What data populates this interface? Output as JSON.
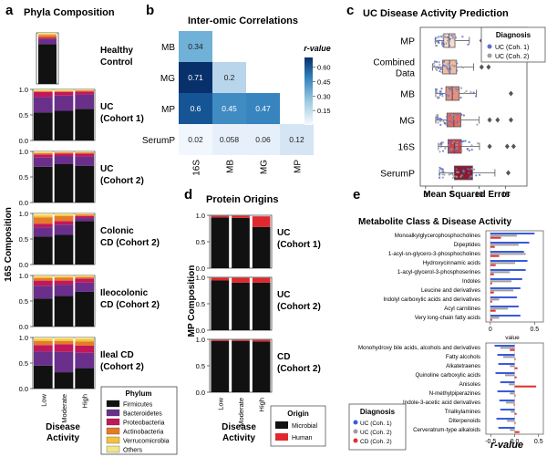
{
  "colors": {
    "firmicutes": "#111111",
    "bacteroidetes": "#6a2f8a",
    "proteobacteria": "#c2185b",
    "actinobacteria": "#e57a2a",
    "verrucomicrobia": "#f3c23d",
    "others": "#f0e68c",
    "microbial": "#111111",
    "human": "#e0282e",
    "coh1": "#3b5bdb",
    "coh2": "#9e9e9e",
    "cd": "#e03131"
  },
  "panels": {
    "a": {
      "letter": "a",
      "title": "Phyla Composition",
      "ylabel": "16S Composition",
      "xlabel_line1": "Disease",
      "xlabel_line2": "Activity",
      "xticks": [
        "Low",
        "Moderate",
        "High"
      ],
      "yticks": [
        "0.0",
        "0.5",
        "1.0"
      ],
      "legend_title": "Phylum",
      "legend": [
        "Firmicutes",
        "Bacteroidetes",
        "Proteobacteria",
        "Actinobacteria",
        "Verrucomicrobia",
        "Others"
      ]
    },
    "b": {
      "letter": "b",
      "title": "Inter-omic Correlations",
      "cbar_title": "r-value",
      "cbar_ticks": [
        "0.60",
        "0.45",
        "0.30",
        "0.15"
      ],
      "rows": [
        "MB",
        "MG",
        "MP",
        "SerumP"
      ],
      "cols": [
        "16S",
        "MB",
        "MG",
        "MP"
      ]
    },
    "c": {
      "letter": "c",
      "title": "UC Disease Activity Prediction",
      "xlabel": "Mean Squared Error",
      "xticks": [
        "0",
        "5",
        "10",
        "15"
      ],
      "legend_title": "Diagnosis",
      "legend": [
        "UC (Coh. 1)",
        "UC (Coh. 2)"
      ],
      "rows": [
        "MP",
        "Combined Data",
        "MB",
        "MG",
        "16S",
        "SerumP"
      ]
    },
    "d": {
      "letter": "d",
      "title": "Protein Origins",
      "ylabel": "MP Composition",
      "xlabel_line1": "Disease",
      "xlabel_line2": "Activity",
      "xticks": [
        "Low",
        "Moderate",
        "High"
      ],
      "yticks": [
        "0.0",
        "0.5",
        "1.0"
      ],
      "legend_title": "Origin",
      "legend": [
        "Microbial",
        "Human"
      ]
    },
    "e": {
      "letter": "e",
      "title": "Metabolite Class & Disease Activity",
      "xlabel": "r-value",
      "value_label": "value",
      "top_ticks": [
        "0",
        "0.5"
      ],
      "bottom_ticks": [
        "-0.5",
        "0.0",
        "0.5"
      ],
      "legend_title": "Diagnosis",
      "legend": [
        "UC (Coh. 1)",
        "UC (Coh. 2)",
        "CD (Coh. 2)"
      ]
    }
  },
  "chart_data": [
    {
      "panel": "a",
      "type": "bar",
      "title": "Phyla Composition",
      "categories": [
        "Low",
        "Moderate",
        "High"
      ],
      "stack_order": [
        "Firmicutes",
        "Bacteroidetes",
        "Proteobacteria",
        "Actinobacteria",
        "Verrucomicrobia",
        "Others"
      ],
      "ylim": [
        0,
        1
      ],
      "groups": [
        {
          "name_lines": [
            "Healthy",
            "Control"
          ],
          "bars": [
            [
              0.78,
              0.1,
              0.03,
              0.05,
              0.02,
              0.02
            ]
          ]
        },
        {
          "name_lines": [
            "UC",
            "(Cohort 1)"
          ],
          "bars": [
            [
              0.55,
              0.3,
              0.1,
              0.02,
              0.01,
              0.02
            ],
            [
              0.58,
              0.3,
              0.07,
              0.02,
              0.01,
              0.02
            ],
            [
              0.62,
              0.28,
              0.06,
              0.02,
              0.01,
              0.01
            ]
          ]
        },
        {
          "name_lines": [
            "UC",
            "(Cohort 2)"
          ],
          "bars": [
            [
              0.7,
              0.18,
              0.06,
              0.03,
              0.01,
              0.02
            ],
            [
              0.75,
              0.16,
              0.05,
              0.02,
              0.01,
              0.01
            ],
            [
              0.72,
              0.18,
              0.06,
              0.02,
              0.01,
              0.01
            ]
          ]
        },
        {
          "name_lines": [
            "Colonic",
            "CD (Cohort 2)"
          ],
          "bars": [
            [
              0.55,
              0.18,
              0.07,
              0.12,
              0.04,
              0.04
            ],
            [
              0.58,
              0.2,
              0.07,
              0.1,
              0.03,
              0.02
            ],
            [
              0.85,
              0.06,
              0.04,
              0.03,
              0.01,
              0.01
            ]
          ]
        },
        {
          "name_lines": [
            "Ileocolonic",
            "CD (Cohort 2)"
          ],
          "bars": [
            [
              0.55,
              0.25,
              0.1,
              0.05,
              0.03,
              0.02
            ],
            [
              0.6,
              0.22,
              0.08,
              0.06,
              0.02,
              0.02
            ],
            [
              0.68,
              0.18,
              0.08,
              0.03,
              0.02,
              0.01
            ]
          ]
        },
        {
          "name_lines": [
            "Ileal CD",
            "(Cohort 2)"
          ],
          "bars": [
            [
              0.45,
              0.28,
              0.12,
              0.08,
              0.04,
              0.03
            ],
            [
              0.32,
              0.4,
              0.15,
              0.06,
              0.04,
              0.03
            ],
            [
              0.4,
              0.3,
              0.14,
              0.08,
              0.05,
              0.03
            ]
          ]
        }
      ]
    },
    {
      "panel": "b",
      "type": "heatmap",
      "title": "Inter-omic Correlations",
      "rows": [
        "MB",
        "MG",
        "MP",
        "SerumP"
      ],
      "cols": [
        "16S",
        "MB",
        "MG",
        "MP"
      ],
      "cells": [
        {
          "r": 0,
          "c": 0,
          "v": 0.34,
          "label": "0.34"
        },
        {
          "r": 1,
          "c": 0,
          "v": 0.71,
          "label": "0.71"
        },
        {
          "r": 1,
          "c": 1,
          "v": 0.2,
          "label": "0.2"
        },
        {
          "r": 2,
          "c": 0,
          "v": 0.6,
          "label": "0.6"
        },
        {
          "r": 2,
          "c": 1,
          "v": 0.45,
          "label": "0.45"
        },
        {
          "r": 2,
          "c": 2,
          "v": 0.47,
          "label": "0.47"
        },
        {
          "r": 3,
          "c": 0,
          "v": 0.02,
          "label": "0.02"
        },
        {
          "r": 3,
          "c": 1,
          "v": 0.058,
          "label": "0.058"
        },
        {
          "r": 3,
          "c": 2,
          "v": 0.06,
          "label": "0.06"
        },
        {
          "r": 3,
          "c": 3,
          "v": 0.12,
          "label": "0.12"
        }
      ],
      "vlim": [
        0,
        0.7
      ]
    },
    {
      "panel": "c",
      "type": "scatter",
      "title": "UC Disease Activity Prediction",
      "xlabel": "Mean Squared Error",
      "xlim": [
        -1,
        19
      ],
      "boxes": [
        {
          "name": "MP",
          "q1": 3.4,
          "median": 4.4,
          "q3": 5.5,
          "wlo": 1.8,
          "whi": 8.2,
          "color": "#f7dcc8",
          "outliers": [
            10.5,
            11.5
          ]
        },
        {
          "name": "Combined Data",
          "q1": 3.2,
          "median": 4.5,
          "q3": 5.8,
          "wlo": 1.3,
          "whi": 9.0,
          "color": "#f2bca0",
          "outliers": [
            10.5,
            11.8
          ]
        },
        {
          "name": "MB",
          "q1": 3.8,
          "median": 5.0,
          "q3": 6.3,
          "wlo": 1.9,
          "whi": 9.5,
          "color": "#e9907a",
          "outliers": [
            16.0
          ]
        },
        {
          "name": "MG",
          "q1": 4.0,
          "median": 5.3,
          "q3": 6.6,
          "wlo": 1.9,
          "whi": 10.0,
          "color": "#e06a60",
          "outliers": [
            12.0,
            13.5,
            16.0
          ]
        },
        {
          "name": "16S",
          "q1": 4.2,
          "median": 5.4,
          "q3": 6.7,
          "wlo": 2.4,
          "whi": 10.1,
          "color": "#c9424d",
          "outliers": [
            12.0,
            15.3,
            16.5
          ]
        },
        {
          "name": "SerumP",
          "q1": 5.4,
          "median": 7.1,
          "q3": 8.8,
          "wlo": 2.6,
          "whi": 13.0,
          "color": "#8e1a2e",
          "outliers": [
            15.5
          ]
        }
      ]
    },
    {
      "panel": "d",
      "type": "bar",
      "title": "Protein Origins",
      "categories": [
        "Low",
        "Moderate",
        "High"
      ],
      "stack_order": [
        "Microbial",
        "Human"
      ],
      "ylim": [
        0,
        1
      ],
      "groups": [
        {
          "name_lines": [
            "UC",
            "(Cohort 1)"
          ],
          "bars": [
            [
              0.96,
              0.03
            ],
            [
              0.95,
              0.04
            ],
            [
              0.78,
              0.2
            ]
          ]
        },
        {
          "name_lines": [
            "UC",
            "(Cohort 2)"
          ],
          "bars": [
            [
              0.94,
              0.05
            ],
            [
              0.9,
              0.09
            ],
            [
              0.9,
              0.09
            ]
          ]
        },
        {
          "name_lines": [
            "CD",
            "(Cohort 2)"
          ],
          "bars": [
            [
              0.97,
              0.02
            ],
            [
              0.97,
              0.02
            ],
            [
              0.96,
              0.03
            ]
          ]
        }
      ]
    },
    {
      "panel": "e",
      "type": "bar",
      "title": "Metabolite Class & Disease Activity",
      "xlabel": "r-value",
      "series": [
        "UC (Coh. 1)",
        "UC (Coh. 2)",
        "CD (Coh. 2)"
      ],
      "xlim_top": [
        -0.05,
        0.6
      ],
      "xlim_bottom": [
        -0.6,
        0.6
      ],
      "top": [
        {
          "label": "Monoalkylglycerophosphocholines",
          "values": [
            0.5,
            0.3,
            0.12
          ]
        },
        {
          "label": "Dipeptides",
          "values": [
            0.44,
            0.32,
            0.05
          ]
        },
        {
          "label": "1-acyl-sn-glycero-3-phosphocholines",
          "values": [
            0.38,
            0.4,
            0.1
          ]
        },
        {
          "label": "Hydroxycinnamic acids",
          "values": [
            0.42,
            0.28,
            0.06
          ]
        },
        {
          "label": "1-acyl-glycerol-3-phosphoserines",
          "values": [
            0.4,
            0.22,
            0.04
          ]
        },
        {
          "label": "Indoles",
          "values": [
            0.36,
            0.24,
            0.02
          ]
        },
        {
          "label": "Leucine and derivatives",
          "values": [
            0.34,
            0.26,
            0.04
          ]
        },
        {
          "label": "Indolyl carboxylic acids and derivatives",
          "values": [
            0.3,
            0.1,
            0.02
          ]
        },
        {
          "label": "Acyl carnitines",
          "values": [
            0.32,
            0.2,
            0.06
          ]
        },
        {
          "label": "Very long-chain fatty acids",
          "values": [
            0.34,
            0.1,
            0.02
          ]
        }
      ],
      "bottom": [
        {
          "label": "Monohydroxy bile acids, alcohols and derivatives",
          "values": [
            -0.42,
            -0.3,
            -0.1
          ]
        },
        {
          "label": "Fatty alcohols",
          "values": [
            -0.36,
            -0.24,
            0.02
          ]
        },
        {
          "label": "Alkatetraenes",
          "values": [
            -0.34,
            -0.1,
            0.06
          ]
        },
        {
          "label": "Quinoline carboxylic acids",
          "values": [
            -0.4,
            -0.2,
            0.04
          ]
        },
        {
          "label": "Anisoles",
          "values": [
            -0.3,
            -0.12,
            0.45
          ]
        },
        {
          "label": "N-methylpiperazines",
          "values": [
            -0.36,
            -0.1,
            0.02
          ]
        },
        {
          "label": "Indole-3-acetic acid derivatives",
          "values": [
            -0.32,
            -0.18,
            -0.02
          ]
        },
        {
          "label": "Trialkylamines",
          "values": [
            -0.3,
            -0.08,
            0.04
          ]
        },
        {
          "label": "Diterpenoids",
          "values": [
            -0.38,
            -0.16,
            0.02
          ]
        },
        {
          "label": "Cerveratrum-type alkaloids",
          "values": [
            -0.34,
            -0.1,
            0.1
          ]
        }
      ]
    }
  ]
}
